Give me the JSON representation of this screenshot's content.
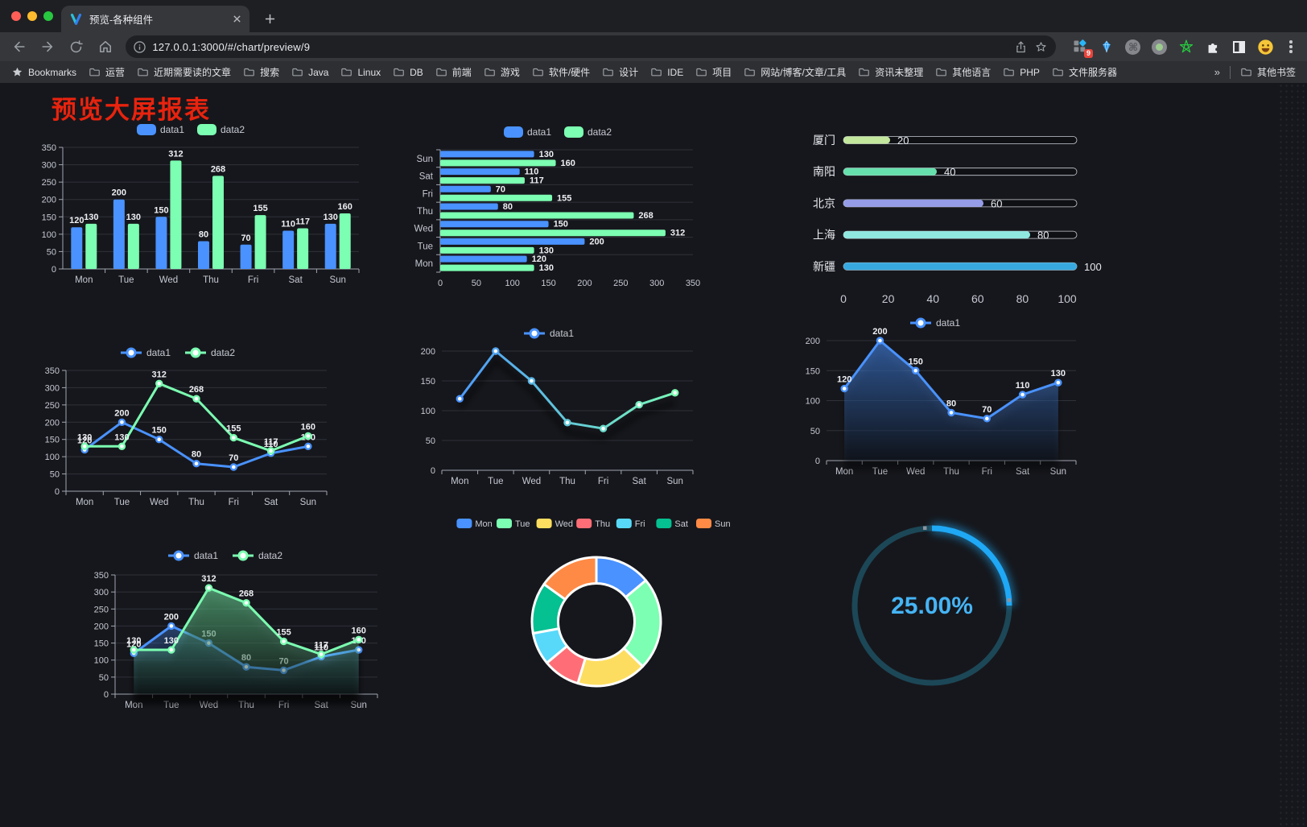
{
  "browser": {
    "tab_title": "预览-各种组件",
    "url": "127.0.0.1:3000/#/chart/preview/9",
    "bookmarks_label": "Bookmarks",
    "bookmarks": [
      "运营",
      "近期需要读的文章",
      "搜索",
      "Java",
      "Linux",
      "DB",
      "前端",
      "游戏",
      "软件/硬件",
      "设计",
      "IDE",
      "项目",
      "网站/博客/文章/工具",
      "资讯未整理",
      "其他语言",
      "PHP",
      "文件服务器"
    ],
    "overflow_chevron": "»",
    "other_bookmarks": "其他书签",
    "extension_badge": "9"
  },
  "page": {
    "title": "预览大屏报表"
  },
  "chart_data": [
    {
      "id": "bar-vertical",
      "type": "bar",
      "categories": [
        "Mon",
        "Tue",
        "Wed",
        "Thu",
        "Fri",
        "Sat",
        "Sun"
      ],
      "series": [
        {
          "name": "data1",
          "color": "#4992ff",
          "values": [
            120,
            200,
            150,
            80,
            70,
            110,
            130
          ]
        },
        {
          "name": "data2",
          "color": "#7cffb2",
          "values": [
            130,
            130,
            312,
            268,
            155,
            117,
            160
          ]
        }
      ],
      "ylim": [
        0,
        350
      ],
      "ytick_step": 50,
      "value_labels": true,
      "legend_position": "top",
      "grid": true
    },
    {
      "id": "bar-horizontal",
      "type": "hbar",
      "categories": [
        "Mon",
        "Tue",
        "Wed",
        "Thu",
        "Fri",
        "Sat",
        "Sun"
      ],
      "series": [
        {
          "name": "data1",
          "color": "#4992ff",
          "values": [
            120,
            200,
            150,
            80,
            70,
            110,
            130
          ]
        },
        {
          "name": "data2",
          "color": "#7cffb2",
          "values": [
            130,
            130,
            312,
            268,
            155,
            117,
            160
          ]
        }
      ],
      "xlim": [
        0,
        350
      ],
      "xtick_step": 50,
      "value_labels": true,
      "legend_position": "top"
    },
    {
      "id": "progress-bars",
      "type": "progress",
      "max": 100,
      "items": [
        {
          "label": "厦门",
          "value": 20,
          "color": "#c3e79d"
        },
        {
          "label": "南阳",
          "value": 40,
          "color": "#66e0ac"
        },
        {
          "label": "北京",
          "value": 60,
          "color": "#959ce8"
        },
        {
          "label": "上海",
          "value": 80,
          "color": "#8fe7e0"
        },
        {
          "label": "新疆",
          "value": 100,
          "color": "#37a9e0"
        }
      ],
      "axis_ticks": [
        0,
        20,
        40,
        60,
        80,
        100
      ]
    },
    {
      "id": "line-basic",
      "type": "line",
      "categories": [
        "Mon",
        "Tue",
        "Wed",
        "Thu",
        "Fri",
        "Sat",
        "Sun"
      ],
      "series": [
        {
          "name": "data1",
          "color": "#4992ff",
          "values": [
            120,
            200,
            150,
            80,
            70,
            110,
            130
          ]
        },
        {
          "name": "data2",
          "color": "#7cffb2",
          "values": [
            130,
            130,
            312,
            268,
            155,
            117,
            160
          ]
        }
      ],
      "ylim": [
        0,
        350
      ],
      "ytick_step": 50,
      "value_labels": true,
      "y_axis_line": true,
      "legend_position": "top"
    },
    {
      "id": "line-gradient",
      "type": "line",
      "categories": [
        "Mon",
        "Tue",
        "Wed",
        "Thu",
        "Fri",
        "Sat",
        "Sun"
      ],
      "series": [
        {
          "name": "data1",
          "color": "#4992ff",
          "values": [
            120,
            200,
            150,
            80,
            70,
            110,
            130
          ]
        }
      ],
      "ylim": [
        0,
        200
      ],
      "ytick_step": 50,
      "value_labels": false,
      "gradient": [
        "#4992ff",
        "#7cffb2"
      ],
      "shadow": true,
      "legend_position": "top"
    },
    {
      "id": "area-single",
      "type": "line",
      "categories": [
        "Mon",
        "Tue",
        "Wed",
        "Thu",
        "Fri",
        "Sat",
        "Sun"
      ],
      "series": [
        {
          "name": "data1",
          "color": "#4992ff",
          "values": [
            120,
            200,
            150,
            80,
            70,
            110,
            130
          ]
        }
      ],
      "ylim": [
        0,
        200
      ],
      "ytick_step": 50,
      "value_labels": true,
      "area": true,
      "shadow": true,
      "legend_position": "top"
    },
    {
      "id": "area-double",
      "type": "line",
      "categories": [
        "Mon",
        "Tue",
        "Wed",
        "Thu",
        "Fri",
        "Sat",
        "Sun"
      ],
      "series": [
        {
          "name": "data1",
          "color": "#4992ff",
          "values": [
            120,
            200,
            150,
            80,
            70,
            110,
            130
          ]
        },
        {
          "name": "data2",
          "color": "#7cffb2",
          "values": [
            130,
            130,
            312,
            268,
            155,
            117,
            160
          ]
        }
      ],
      "ylim": [
        0,
        350
      ],
      "ytick_step": 50,
      "value_labels": true,
      "area": true,
      "shadow": true,
      "y_axis_line": true,
      "legend_position": "top"
    },
    {
      "id": "donut",
      "type": "donut",
      "categories": [
        "Mon",
        "Tue",
        "Wed",
        "Thu",
        "Fri",
        "Sat",
        "Sun"
      ],
      "values": [
        120,
        200,
        150,
        80,
        70,
        110,
        130
      ],
      "colors": [
        "#4992ff",
        "#7cffb2",
        "#fddd60",
        "#ff6e76",
        "#58d9f9",
        "#05c091",
        "#ff8a45"
      ],
      "legend_position": "top"
    },
    {
      "id": "gauge",
      "type": "gauge",
      "value": 25,
      "max": 100,
      "label": "25.00%",
      "color": "#1fa8f5",
      "track_color": "#1c4757",
      "text_color": "#45b4f5"
    }
  ]
}
